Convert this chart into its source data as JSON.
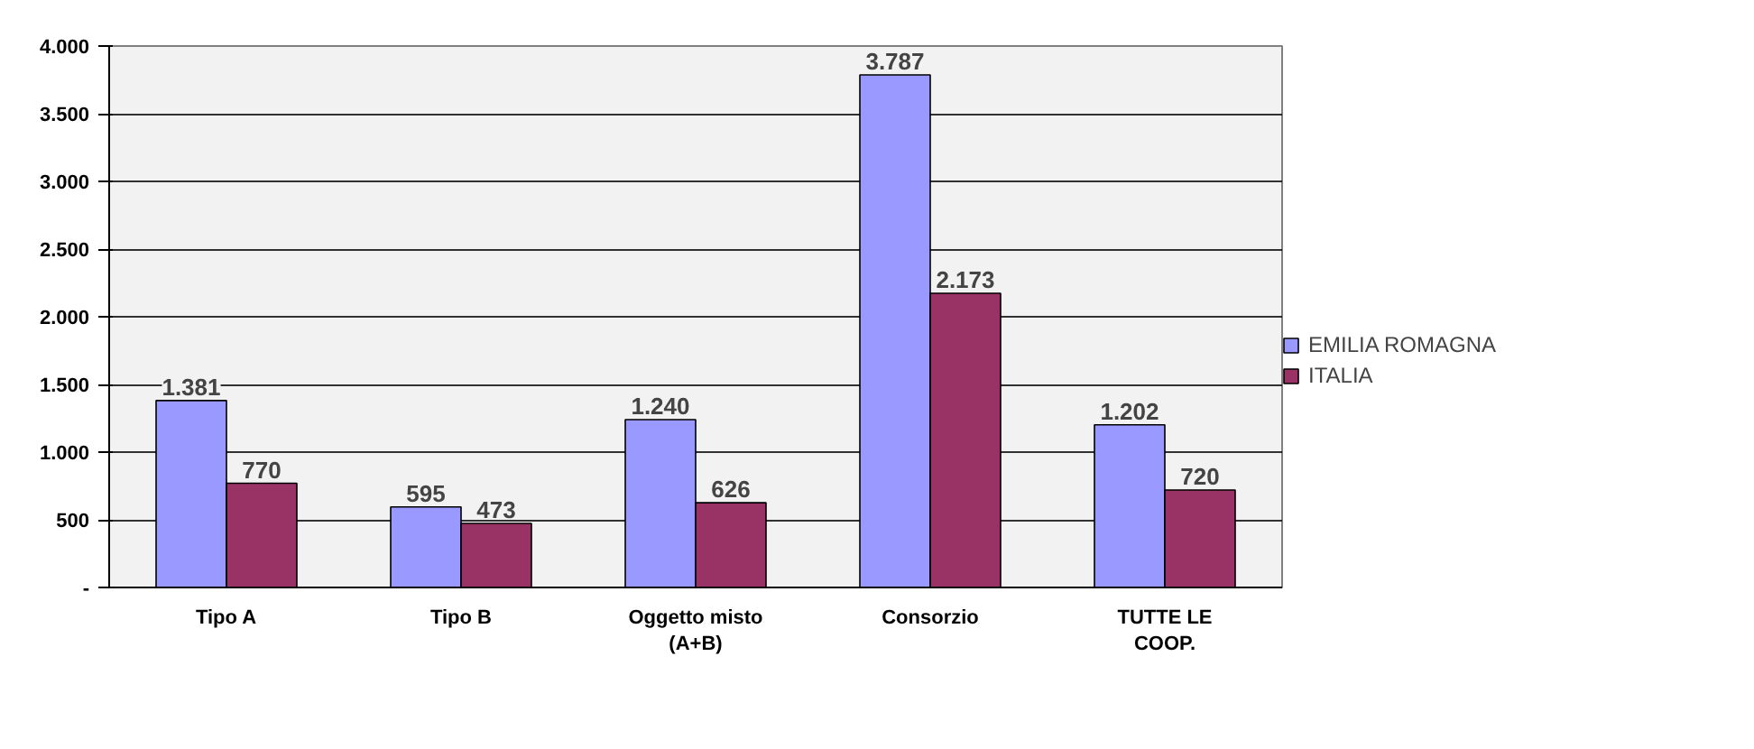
{
  "chart_data": {
    "type": "bar",
    "categories": [
      "Tipo A",
      "Tipo B",
      "Oggetto misto\n(A+B)",
      "Consorzio",
      "TUTTE LE\nCOOP."
    ],
    "series": [
      {
        "name": "EMILIA ROMAGNA",
        "color": "#9999ff",
        "values": [
          1381,
          595,
          1240,
          3787,
          1202
        ],
        "value_labels": [
          "1.381",
          "595",
          "1.240",
          "3.787",
          "1.202"
        ]
      },
      {
        "name": "ITALIA",
        "color": "#993366",
        "values": [
          770,
          473,
          626,
          2173,
          720
        ],
        "value_labels": [
          "770",
          "473",
          "626",
          "2.173",
          "720"
        ]
      }
    ],
    "ylim": [
      0,
      4000
    ],
    "yticks": [
      {
        "value": 0,
        "label": "-"
      },
      {
        "value": 500,
        "label": "500"
      },
      {
        "value": 1000,
        "label": "1.000"
      },
      {
        "value": 1500,
        "label": "1.500"
      },
      {
        "value": 2000,
        "label": "2.000"
      },
      {
        "value": 2500,
        "label": "2.500"
      },
      {
        "value": 3000,
        "label": "3.000"
      },
      {
        "value": 3500,
        "label": "3.500"
      },
      {
        "value": 4000,
        "label": "4.000"
      }
    ],
    "grid": "y",
    "legend": "right"
  }
}
